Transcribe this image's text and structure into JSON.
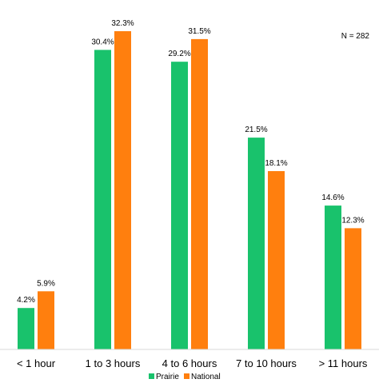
{
  "chart_data": {
    "type": "bar",
    "title": "",
    "xlabel": "",
    "ylabel": "",
    "categories": [
      "< 1 hour",
      "1 to 3 hours",
      "4 to 6 hours",
      "7 to 10 hours",
      "> 11 hours"
    ],
    "series": [
      {
        "name": "Prairie",
        "color": "#19c26c",
        "values": [
          4.2,
          30.4,
          29.2,
          21.5,
          14.6
        ],
        "labels": [
          "4.2%",
          "30.4%",
          "29.2%",
          "21.5%",
          "14.6%"
        ]
      },
      {
        "name": "National",
        "color": "#ff7f0e",
        "values": [
          5.9,
          32.3,
          31.5,
          18.1,
          12.3
        ],
        "labels": [
          "5.9%",
          "32.3%",
          "31.5%",
          "18.1%",
          "12.3%"
        ]
      }
    ],
    "ylim": [
      0,
      32.3
    ],
    "grid": false,
    "legend": "bottom-center",
    "annotation": "N = 282"
  }
}
